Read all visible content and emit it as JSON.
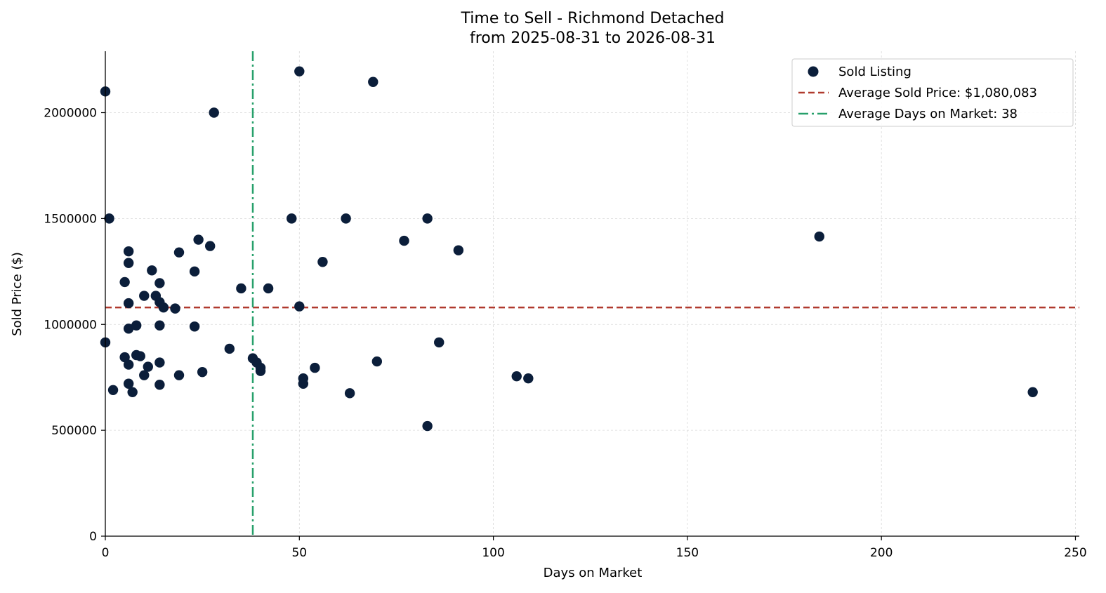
{
  "chart_data": {
    "type": "scatter",
    "title": "Time to Sell - Richmond Detached",
    "subtitle": "from 2025-08-31 to 2026-08-31",
    "xlabel": "Days on Market",
    "ylabel": "Sold Price ($)",
    "xlim": [
      0,
      251
    ],
    "ylim": [
      0,
      2290000
    ],
    "x_ticks": [
      0,
      50,
      100,
      150,
      200,
      250
    ],
    "y_ticks": [
      0,
      500000,
      1000000,
      1500000,
      2000000
    ],
    "x_tick_labels": [
      "0",
      "50",
      "100",
      "150",
      "200",
      "250"
    ],
    "y_tick_labels": [
      "0",
      "500000",
      "1000000",
      "1500000",
      "2000000"
    ],
    "grid": true,
    "legend_position": "top-right",
    "series": [
      {
        "name": "Sold Listing",
        "color": "#0b1e3a",
        "points": [
          [
            0,
            2100000
          ],
          [
            0,
            915000
          ],
          [
            1,
            1500000
          ],
          [
            2,
            690000
          ],
          [
            5,
            1200000
          ],
          [
            5,
            845000
          ],
          [
            6,
            1345000
          ],
          [
            6,
            1290000
          ],
          [
            6,
            1100000
          ],
          [
            6,
            980000
          ],
          [
            6,
            810000
          ],
          [
            6,
            720000
          ],
          [
            7,
            680000
          ],
          [
            8,
            995000
          ],
          [
            8,
            855000
          ],
          [
            9,
            850000
          ],
          [
            10,
            1135000
          ],
          [
            10,
            760000
          ],
          [
            11,
            800000
          ],
          [
            12,
            1255000
          ],
          [
            13,
            1135000
          ],
          [
            14,
            1195000
          ],
          [
            14,
            1105000
          ],
          [
            14,
            995000
          ],
          [
            14,
            820000
          ],
          [
            14,
            715000
          ],
          [
            15,
            1080000
          ],
          [
            18,
            1075000
          ],
          [
            19,
            1340000
          ],
          [
            19,
            760000
          ],
          [
            23,
            1250000
          ],
          [
            23,
            990000
          ],
          [
            24,
            1400000
          ],
          [
            25,
            775000
          ],
          [
            27,
            1370000
          ],
          [
            28,
            2000000
          ],
          [
            32,
            885000
          ],
          [
            35,
            1170000
          ],
          [
            38,
            840000
          ],
          [
            39,
            820000
          ],
          [
            40,
            795000
          ],
          [
            40,
            780000
          ],
          [
            42,
            1170000
          ],
          [
            48,
            1500000
          ],
          [
            50,
            2195000
          ],
          [
            50,
            1085000
          ],
          [
            51,
            745000
          ],
          [
            51,
            720000
          ],
          [
            54,
            795000
          ],
          [
            56,
            1295000
          ],
          [
            62,
            1500000
          ],
          [
            63,
            675000
          ],
          [
            69,
            2145000
          ],
          [
            70,
            825000
          ],
          [
            77,
            1395000
          ],
          [
            83,
            1500000
          ],
          [
            83,
            520000
          ],
          [
            86,
            915000
          ],
          [
            91,
            1350000
          ],
          [
            106,
            755000
          ],
          [
            109,
            745000
          ],
          [
            184,
            1415000
          ],
          [
            239,
            680000
          ]
        ]
      }
    ],
    "reference_lines": [
      {
        "name": "Average Sold Price: $1,080,083",
        "orientation": "horizontal",
        "value": 1080083,
        "color": "#b03a2e",
        "style": "dashed"
      },
      {
        "name": "Average Days on Market: 38",
        "orientation": "vertical",
        "value": 38,
        "color": "#27a06b",
        "style": "dashdot"
      }
    ],
    "legend": [
      "Sold Listing",
      "Average Sold Price: $1,080,083",
      "Average Days on Market: 38"
    ]
  }
}
